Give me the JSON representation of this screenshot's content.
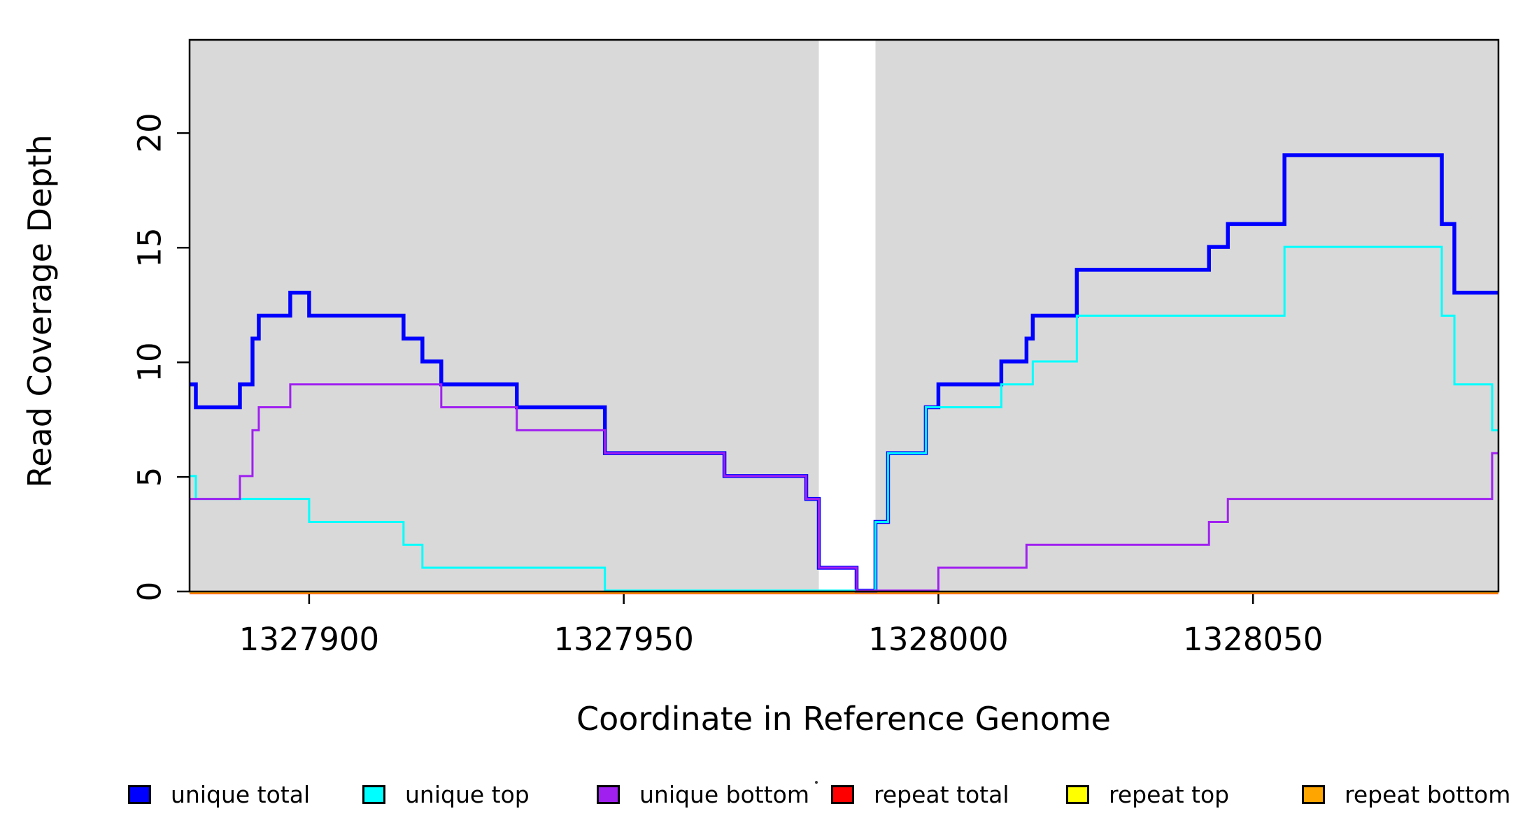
{
  "figure": {
    "x_axis_label": "Coordinate in Reference Genome",
    "y_axis_label": "Read Coverage Depth",
    "background_color": "#ffffff",
    "region_color": "#d9d9d9",
    "axis_color": "#000000"
  },
  "chart_data": {
    "type": "line",
    "subtype": "step-after",
    "title": "",
    "xlabel": "Coordinate in Reference Genome",
    "ylabel": "Read Coverage Depth",
    "grid": false,
    "legend_position": "bottom",
    "x_range": [
      1327881,
      1328089
    ],
    "y_range": [
      0,
      24
    ],
    "x_ticks": [
      1327900,
      1327950,
      1328000,
      1328050
    ],
    "y_ticks": [
      0,
      5,
      10,
      15,
      20
    ],
    "background_regions": [
      {
        "name": "amplicon-region-1",
        "x0": 1327881,
        "x1": 1327981,
        "color": "#d9d9d9"
      },
      {
        "name": "amplicon-region-2",
        "x0": 1327990,
        "x1": 1328089,
        "color": "#d9d9d9"
      }
    ],
    "series": [
      {
        "name": "unique total",
        "color": "#0000FF",
        "line_width": 5.5,
        "steps": [
          [
            1327881,
            9
          ],
          [
            1327882,
            8
          ],
          [
            1327889,
            9
          ],
          [
            1327891,
            11
          ],
          [
            1327892,
            12
          ],
          [
            1327897,
            13
          ],
          [
            1327900,
            12
          ],
          [
            1327915,
            11
          ],
          [
            1327918,
            10
          ],
          [
            1327921,
            9
          ],
          [
            1327933,
            8
          ],
          [
            1327947,
            6
          ],
          [
            1327966,
            5
          ],
          [
            1327979,
            4
          ],
          [
            1327981,
            1
          ],
          [
            1327987,
            0
          ],
          [
            1327990,
            3
          ],
          [
            1327992,
            6
          ],
          [
            1327998,
            8
          ],
          [
            1328000,
            9
          ],
          [
            1328010,
            10
          ],
          [
            1328014,
            11
          ],
          [
            1328015,
            12
          ],
          [
            1328022,
            14
          ],
          [
            1328043,
            15
          ],
          [
            1328046,
            16
          ],
          [
            1328055,
            19
          ],
          [
            1328080,
            16
          ],
          [
            1328082,
            13
          ],
          [
            1328089,
            13
          ]
        ]
      },
      {
        "name": "unique top",
        "color": "#00FFFF",
        "line_width": 3,
        "steps": [
          [
            1327881,
            5
          ],
          [
            1327882,
            4
          ],
          [
            1327900,
            3
          ],
          [
            1327915,
            2
          ],
          [
            1327918,
            1
          ],
          [
            1327947,
            0
          ],
          [
            1327990,
            3
          ],
          [
            1327992,
            6
          ],
          [
            1327998,
            8
          ],
          [
            1328010,
            9
          ],
          [
            1328015,
            10
          ],
          [
            1328022,
            12
          ],
          [
            1328055,
            15
          ],
          [
            1328080,
            12
          ],
          [
            1328082,
            9
          ],
          [
            1328088,
            7
          ],
          [
            1328089,
            7
          ]
        ]
      },
      {
        "name": "unique bottom",
        "color": "#A020F0",
        "line_width": 3,
        "steps": [
          [
            1327881,
            4
          ],
          [
            1327889,
            5
          ],
          [
            1327891,
            7
          ],
          [
            1327892,
            8
          ],
          [
            1327897,
            9
          ],
          [
            1327921,
            8
          ],
          [
            1327933,
            7
          ],
          [
            1327947,
            6
          ],
          [
            1327966,
            5
          ],
          [
            1327979,
            4
          ],
          [
            1327981,
            1
          ],
          [
            1327987,
            0
          ],
          [
            1328000,
            1
          ],
          [
            1328014,
            2
          ],
          [
            1328043,
            3
          ],
          [
            1328046,
            4
          ],
          [
            1328088,
            6
          ],
          [
            1328089,
            6
          ]
        ]
      },
      {
        "name": "repeat total",
        "color": "#FF0000",
        "line_width": 3,
        "steps": [
          [
            1327881,
            0
          ],
          [
            1328089,
            0
          ]
        ]
      },
      {
        "name": "repeat top",
        "color": "#FFFF00",
        "line_width": 3,
        "steps": [
          [
            1327881,
            0
          ],
          [
            1328089,
            0
          ]
        ]
      },
      {
        "name": "repeat bottom",
        "color": "#FFA500",
        "line_width": 4,
        "steps": [
          [
            1327881,
            0
          ],
          [
            1328089,
            0
          ]
        ]
      }
    ]
  }
}
